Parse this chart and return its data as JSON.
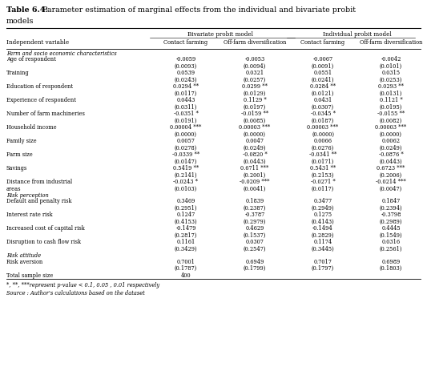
{
  "title_bold": "Table 6.4:",
  "title_rest": " Parameter estimation of marginal effects from the individual and bivariate probit",
  "title_line2": "models",
  "col_headers": [
    "Independent variable",
    "Contact farming",
    "Off-farm diversification",
    "Contact farming",
    "Off-farm diversification"
  ],
  "model_headers": [
    "Bivariate probit model",
    "Individual probit model"
  ],
  "rows": [
    {
      "label": "Farm and socio economic characteristics",
      "vals": [
        "",
        "",
        "",
        ""
      ],
      "is_section": true
    },
    {
      "label": "Age of respondent",
      "vals": [
        "-0.0059",
        "-0.0053",
        "-0.0067",
        "-0.0042"
      ],
      "is_section": false
    },
    {
      "label": "",
      "vals": [
        "(0.0093)",
        "(0.0094)",
        "(0.0091)",
        "(0.0101)"
      ],
      "is_section": false
    },
    {
      "label": "Training",
      "vals": [
        "0.0539",
        "0.0321",
        "0.0551",
        "0.0315"
      ],
      "is_section": false
    },
    {
      "label": "",
      "vals": [
        "(0.0243)",
        "(0.0257)",
        "(0.0241)",
        "(0.0253)"
      ],
      "is_section": false
    },
    {
      "label": "Education of respondent",
      "vals": [
        "0.0294 **",
        "0.0299 **",
        "0.0284 **",
        "0.0293 **"
      ],
      "is_section": false
    },
    {
      "label": "",
      "vals": [
        "(0.0117)",
        "(0.0129)",
        "(0.0121)",
        "(0.0131)"
      ],
      "is_section": false
    },
    {
      "label": "Experience of respondent",
      "vals": [
        "0.0443",
        "0.1129 *",
        "0.0431",
        "0.1121 *"
      ],
      "is_section": false
    },
    {
      "label": "",
      "vals": [
        "(0.0311)",
        "(0.0197)",
        "(0.0307)",
        "(0.0195)"
      ],
      "is_section": false
    },
    {
      "label": "Number of farm machineries",
      "vals": [
        "-0.0351 *",
        "-0.0159 **",
        "-0.0345 *",
        "-0.0155 **"
      ],
      "is_section": false
    },
    {
      "label": "",
      "vals": [
        "(0.0191)",
        "(0.0085)",
        "(0.0187)",
        "(0.0082)"
      ],
      "is_section": false
    },
    {
      "label": "Household income",
      "vals": [
        "0.00004 ***",
        "0.00003 ***",
        "0.00003 ***",
        "0.00003 ***"
      ],
      "is_section": false
    },
    {
      "label": "",
      "vals": [
        "(0.0000)",
        "(0.0000)",
        "(0.0000)",
        "(0.0000)"
      ],
      "is_section": false
    },
    {
      "label": "Family size",
      "vals": [
        "0.0057",
        "0.0047",
        "0.0066",
        "0.0062"
      ],
      "is_section": false
    },
    {
      "label": "",
      "vals": [
        "(0.0278)",
        "(0.0249)",
        "(0.0276)",
        "(0.0249)"
      ],
      "is_section": false
    },
    {
      "label": "Farm size",
      "vals": [
        "-0.0339 **",
        "-0.0820 *",
        "-0.0341 **",
        "-0.0876 *"
      ],
      "is_section": false
    },
    {
      "label": "",
      "vals": [
        "(0.0147)",
        "(0.0443)",
        "(0.0171)",
        "(0.0443)"
      ],
      "is_section": false
    },
    {
      "label": "Savings",
      "vals": [
        "0.5419 **",
        "0.6711 ***",
        "0.5431 **",
        "0.6723 ***"
      ],
      "is_section": false
    },
    {
      "label": "",
      "vals": [
        "(0.2141)",
        "(0.2001)",
        "(0.2153)",
        "(0.2006)"
      ],
      "is_section": false
    },
    {
      "label": "Distance from industrial",
      "vals": [
        "-0.0243 *",
        "-0.0209 ***",
        "-0.0271 *",
        "-0.0214 ***"
      ],
      "is_section": false
    },
    {
      "label": "areas",
      "vals": [
        "(0.0103)",
        "(0.0041)",
        "(0.0117)",
        "(0.0047)"
      ],
      "is_section": false
    },
    {
      "label": "Risk perception",
      "vals": [
        "",
        "",
        "",
        ""
      ],
      "is_section": true
    },
    {
      "label": "Default and penalty risk",
      "vals": [
        "0.3469",
        "0.1839",
        "0.3477",
        "0.1847"
      ],
      "is_section": false
    },
    {
      "label": "",
      "vals": [
        "(0.2951)",
        "(0.2387)",
        "(0.2949)",
        "(0.2394)"
      ],
      "is_section": false
    },
    {
      "label": "Interest rate risk",
      "vals": [
        "0.1247",
        "-0.3787",
        "0.1275",
        "-0.3798"
      ],
      "is_section": false
    },
    {
      "label": "",
      "vals": [
        "(0.4153)",
        "(0.2979)",
        "(0.4143)",
        "(0.2989)"
      ],
      "is_section": false
    },
    {
      "label": "Increased cost of capital risk",
      "vals": [
        "-0.1479",
        "0.4629",
        "-0.1494",
        "0.4445"
      ],
      "is_section": false
    },
    {
      "label": "",
      "vals": [
        "(0.2817)",
        "(0.1537)",
        "(0.2829)",
        "(0.1549)"
      ],
      "is_section": false
    },
    {
      "label": "Disruption to cash flow risk",
      "vals": [
        "0.1161",
        "0.0307",
        "0.1174",
        "0.0316"
      ],
      "is_section": false
    },
    {
      "label": "",
      "vals": [
        "(0.3429)",
        "(0.2547)",
        "(0.3445)",
        "(0.2561)"
      ],
      "is_section": false
    },
    {
      "label": "Risk attitude",
      "vals": [
        "",
        "",
        "",
        ""
      ],
      "is_section": true
    },
    {
      "label": "Risk aversion",
      "vals": [
        "0.7001",
        "0.6949",
        "0.7017",
        "0.6989"
      ],
      "is_section": false
    },
    {
      "label": "",
      "vals": [
        "(0.1787)",
        "(0.1799)",
        "(0.1797)",
        "(0.1803)"
      ],
      "is_section": false
    },
    {
      "label": "Total sample size",
      "vals": [
        "400",
        "",
        "",
        ""
      ],
      "is_section": false
    }
  ],
  "footnote1": "*, **, ***represent p-value < 0.1, 0.05 , 0.01 respectively",
  "footnote2": "Source : Author's calculations based on the dataset",
  "bg_color": "#ffffff"
}
